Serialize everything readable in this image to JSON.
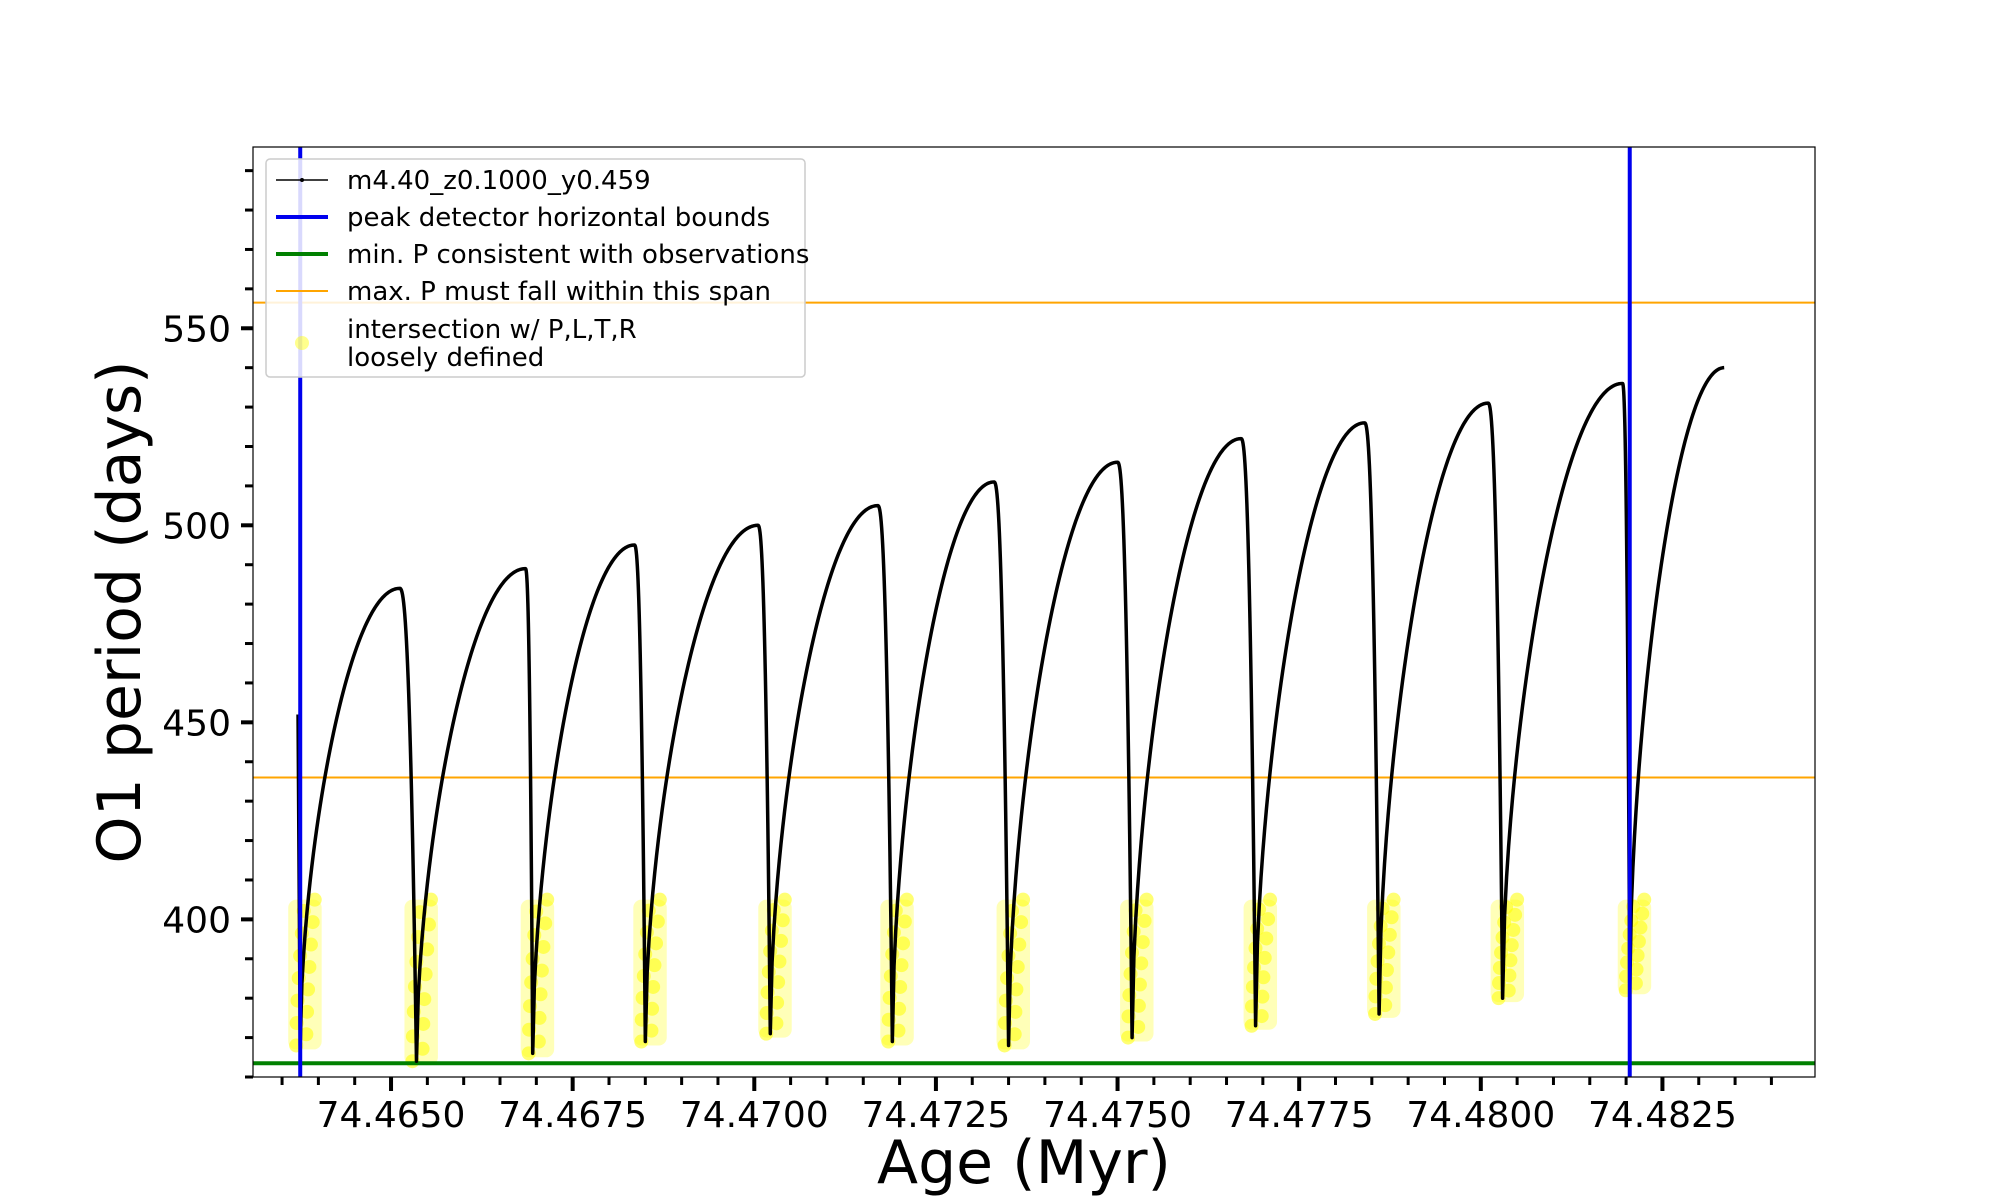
{
  "chart_data": {
    "type": "line",
    "xlabel": "Age (Myr)",
    "ylabel": "O1 period (days)",
    "xlim": [
      74.4631,
      74.4846
    ],
    "ylim": [
      360,
      596
    ],
    "x_ticks": [
      74.465,
      74.4675,
      74.47,
      74.4725,
      74.475,
      74.4775,
      74.48,
      74.4825
    ],
    "x_tick_labels": [
      "74.4650",
      "74.4675",
      "74.4700",
      "74.4725",
      "74.4750",
      "74.4775",
      "74.4800",
      "74.4825"
    ],
    "y_ticks": [
      400,
      450,
      500,
      550
    ],
    "y_tick_labels": [
      "400",
      "450",
      "500",
      "550"
    ],
    "grid": false,
    "legend_position": "top-left",
    "series": [
      {
        "name": "m4.40_z0.1000_y0.459",
        "kind": "line",
        "color": "#000000",
        "cycles": [
          {
            "min_x": 74.46375,
            "min_p": 368,
            "peak_x": 74.46512,
            "peak_p": 484,
            "drop_x": 74.46535
          },
          {
            "min_x": 74.46535,
            "min_p": 364,
            "peak_x": 74.46685,
            "peak_p": 489,
            "drop_x": 74.46695
          },
          {
            "min_x": 74.46695,
            "min_p": 366,
            "peak_x": 74.46835,
            "peak_p": 495,
            "drop_x": 74.4685
          },
          {
            "min_x": 74.4685,
            "min_p": 369,
            "peak_x": 74.47005,
            "peak_p": 500,
            "drop_x": 74.47022
          },
          {
            "min_x": 74.47022,
            "min_p": 371,
            "peak_x": 74.4717,
            "peak_p": 505,
            "drop_x": 74.4719
          },
          {
            "min_x": 74.4719,
            "min_p": 369,
            "peak_x": 74.4733,
            "peak_p": 511,
            "drop_x": 74.4735
          },
          {
            "min_x": 74.4735,
            "min_p": 368,
            "peak_x": 74.475,
            "peak_p": 516,
            "drop_x": 74.4752
          },
          {
            "min_x": 74.4752,
            "min_p": 370,
            "peak_x": 74.4767,
            "peak_p": 522,
            "drop_x": 74.4769
          },
          {
            "min_x": 74.4769,
            "min_p": 373,
            "peak_x": 74.4784,
            "peak_p": 526,
            "drop_x": 74.4786
          },
          {
            "min_x": 74.4786,
            "min_p": 376,
            "peak_x": 74.4801,
            "peak_p": 531,
            "drop_x": 74.4803
          },
          {
            "min_x": 74.4803,
            "min_p": 380,
            "peak_x": 74.48195,
            "peak_p": 536,
            "drop_x": 74.48205
          },
          {
            "min_x": 74.48205,
            "min_p": 382,
            "peak_x": 74.48335,
            "peak_p": 540,
            "drop_x": 74.48335
          }
        ],
        "start_value": {
          "x": 74.46372,
          "p": 452
        }
      },
      {
        "name": "peak detector horizontal bounds",
        "kind": "vline",
        "color": "#0000ee",
        "x": [
          74.46375,
          74.48205
        ]
      },
      {
        "name": "min. P consistent with observations",
        "kind": "hline",
        "color": "#008000",
        "y": 363.5
      },
      {
        "name": "max. P must fall within this span",
        "kind": "hline",
        "color": "#ffa500",
        "y": [
          436,
          556.5
        ]
      },
      {
        "name": "intersection w/ P,L,T,R\nloosely defined",
        "kind": "scatter",
        "color": "#ffff00",
        "band": [
          364,
          405
        ]
      }
    ]
  }
}
